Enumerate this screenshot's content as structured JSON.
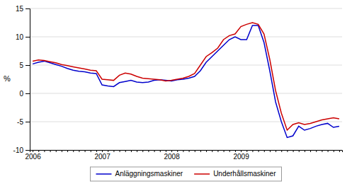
{
  "chart_data": {
    "type": "line",
    "y_label": "%",
    "categories": [
      "2006",
      null,
      null,
      null,
      null,
      null,
      null,
      null,
      null,
      null,
      null,
      null,
      "2007",
      null,
      null,
      null,
      null,
      null,
      null,
      null,
      null,
      null,
      null,
      null,
      "2008",
      null,
      null,
      null,
      null,
      null,
      null,
      null,
      null,
      null,
      null,
      null,
      "2009",
      null,
      null,
      null,
      null,
      null,
      null,
      null,
      null,
      null,
      null,
      null,
      null,
      null,
      null,
      null,
      null,
      null
    ],
    "series": [
      {
        "name": "Anläggningsmaskiner",
        "color": "#0000cc",
        "values": [
          5.2,
          5.5,
          5.7,
          5.4,
          5.1,
          4.8,
          4.4,
          4.1,
          3.9,
          3.8,
          3.6,
          3.5,
          1.5,
          1.3,
          1.2,
          1.9,
          2.1,
          2.3,
          2.0,
          1.9,
          2.0,
          2.3,
          2.4,
          2.3,
          2.2,
          2.4,
          2.5,
          2.7,
          3.0,
          4.0,
          5.5,
          6.5,
          7.5,
          8.5,
          9.5,
          10.0,
          9.5,
          9.5,
          12.0,
          12.0,
          9.0,
          4.0,
          -1.5,
          -5.0,
          -7.8,
          -7.5,
          -5.8,
          -6.5,
          -6.2,
          -5.8,
          -5.5,
          -5.3,
          -6.0,
          -5.8
        ]
      },
      {
        "name": "Underhållsmaskiner",
        "color": "#cc0000",
        "values": [
          5.7,
          5.9,
          5.8,
          5.6,
          5.4,
          5.1,
          4.9,
          4.7,
          4.5,
          4.3,
          4.1,
          4.0,
          2.5,
          2.4,
          2.3,
          3.2,
          3.6,
          3.4,
          3.0,
          2.7,
          2.6,
          2.5,
          2.4,
          2.2,
          2.3,
          2.5,
          2.7,
          3.0,
          3.5,
          5.0,
          6.5,
          7.2,
          8.0,
          9.5,
          10.2,
          10.5,
          11.8,
          12.2,
          12.5,
          12.2,
          10.5,
          6.0,
          0.5,
          -3.5,
          -6.5,
          -5.5,
          -5.2,
          -5.5,
          -5.3,
          -5.0,
          -4.7,
          -4.5,
          -4.3,
          -4.5
        ]
      }
    ],
    "ylim": [
      -10,
      15
    ],
    "yticks": [
      -10,
      -5,
      0,
      5,
      10,
      15
    ],
    "grid": true,
    "legend": "bottom"
  }
}
